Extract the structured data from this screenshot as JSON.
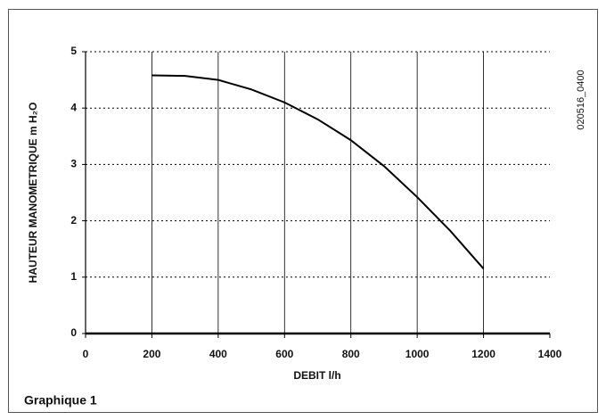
{
  "chart_data": {
    "type": "line",
    "xlabel": "DEBIT l/h",
    "ylabel": "HAUTEUR MANOMETRIQUE m H₂O",
    "caption": "Graphique 1",
    "code": "020516_0400",
    "x": [
      200,
      300,
      400,
      500,
      600,
      700,
      800,
      900,
      1000,
      1100,
      1200
    ],
    "values": [
      4.58,
      4.57,
      4.5,
      4.33,
      4.1,
      3.8,
      3.43,
      2.97,
      2.42,
      1.82,
      1.15
    ],
    "color": "#000000",
    "xlim": [
      0,
      1400
    ],
    "xticks": [
      0,
      200,
      400,
      600,
      800,
      1000,
      1200,
      1400
    ],
    "ylim": [
      0,
      5
    ],
    "yticks": [
      0,
      1,
      2,
      3,
      4,
      5
    ],
    "grid": true
  }
}
